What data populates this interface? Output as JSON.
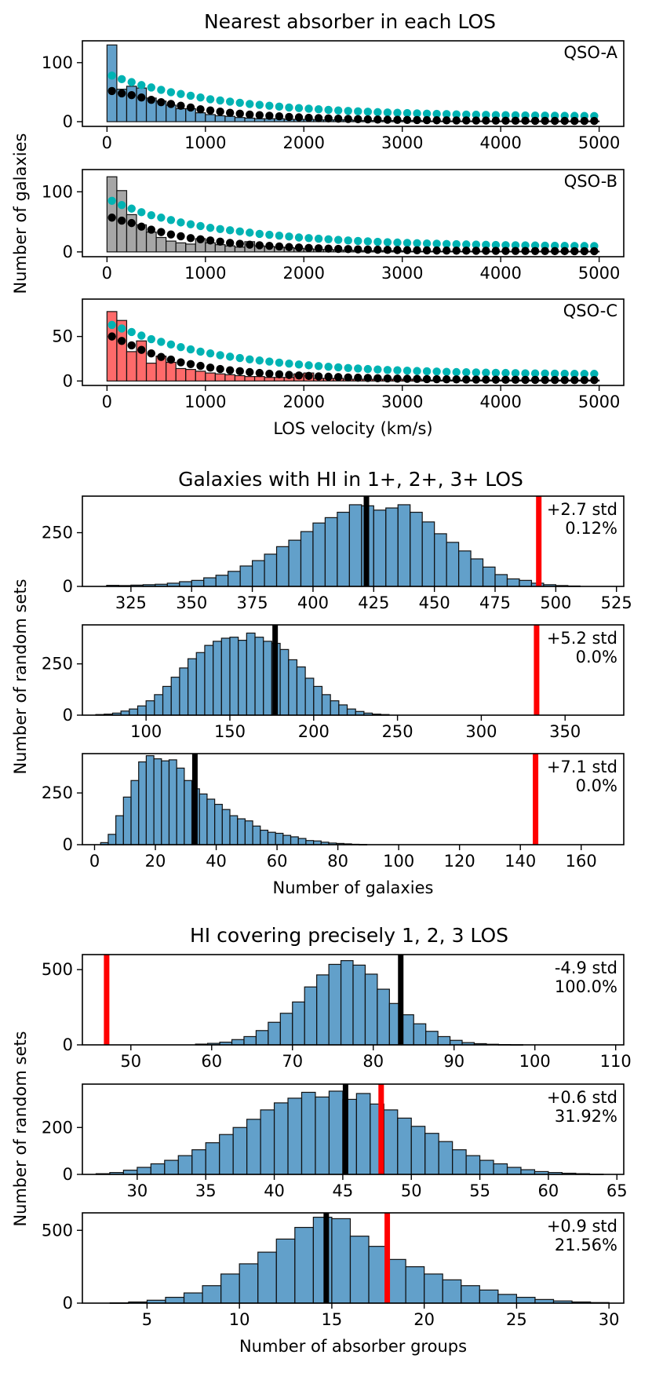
{
  "figure": {
    "titles": [
      "Nearest absorber in each LOS",
      "Galaxies with HI in 1+, 2+, 3+ LOS",
      "HI covering precisely 1, 2, 3 LOS"
    ],
    "ylabels": [
      "Number of galaxies",
      "Number of random sets",
      "Number of random sets"
    ]
  },
  "chart_data": [
    {
      "type": "bar",
      "group": 1,
      "label": "QSO-A",
      "fill": "#1f77b4",
      "alpha": 0.7,
      "xlim": [
        -250,
        5250
      ],
      "ylim": [
        -8,
        137
      ],
      "xticks": [
        0,
        1000,
        2000,
        3000,
        4000,
        5000
      ],
      "yticks": [
        0,
        100
      ],
      "bins": {
        "start": 0,
        "width": 100
      },
      "values": [
        130,
        55,
        60,
        57,
        40,
        35,
        28,
        22,
        22,
        15,
        12,
        10,
        9,
        7,
        6,
        5,
        5,
        5,
        4,
        4,
        4,
        3,
        3,
        3,
        3,
        2,
        2,
        2,
        2,
        2,
        2,
        2,
        1,
        1,
        1,
        1,
        1,
        1,
        1,
        1,
        1,
        1,
        1,
        1,
        1,
        1,
        1,
        1,
        1,
        1
      ],
      "xlabel": "",
      "scatter": [
        {
          "name": "cyan",
          "color": "#00b3b3",
          "x0": 50,
          "dx": 100,
          "values": [
            78,
            72,
            67,
            62,
            58,
            54,
            50,
            47,
            44,
            41,
            38,
            36,
            34,
            32,
            30,
            28.5,
            27,
            25.5,
            24,
            23,
            22,
            21,
            20,
            19,
            18.2,
            17.5,
            16.8,
            16.1,
            15.5,
            15,
            14.5,
            14,
            13.6,
            13.2,
            12.8,
            12.4,
            12.1,
            11.8,
            11.5,
            11.2,
            11,
            10.8,
            10.6,
            10.4,
            10.2,
            10,
            9.9,
            9.8,
            9.7,
            9.6
          ]
        },
        {
          "name": "black",
          "color": "#000000",
          "x0": 50,
          "dx": 100,
          "values": [
            52,
            48,
            45,
            41,
            37,
            33,
            30,
            27,
            24,
            21,
            19,
            17,
            15,
            13.5,
            12,
            11,
            10,
            9,
            8,
            7.3,
            6.6,
            6,
            5.5,
            5,
            4.6,
            4.2,
            3.9,
            3.6,
            3.3,
            3.1,
            2.9,
            2.7,
            2.5,
            2.3,
            2.2,
            2.1,
            2,
            1.9,
            1.8,
            1.7,
            1.6,
            1.5,
            1.5,
            1.4,
            1.4,
            1.3,
            1.3,
            1.2,
            1.2,
            1.2
          ]
        }
      ]
    },
    {
      "type": "bar",
      "group": 1,
      "label": "QSO-B",
      "fill": "#808080",
      "alpha": 0.7,
      "xlim": [
        -250,
        5250
      ],
      "ylim": [
        -8,
        137
      ],
      "xticks": [
        0,
        1000,
        2000,
        3000,
        4000,
        5000
      ],
      "yticks": [
        0,
        100
      ],
      "bins": {
        "start": 0,
        "width": 100
      },
      "values": [
        125,
        102,
        62,
        45,
        33,
        24,
        18,
        15,
        13,
        22,
        15,
        12,
        10,
        8,
        17,
        10,
        9,
        8,
        7,
        6,
        5,
        4,
        4,
        3,
        3,
        2,
        2,
        2,
        2,
        2,
        1,
        1,
        1,
        1,
        1,
        1,
        1,
        1,
        1,
        1,
        1,
        1,
        1,
        1,
        1,
        1,
        1,
        1,
        1,
        1
      ],
      "xlabel": "",
      "scatter": [
        {
          "name": "cyan",
          "color": "#00b3b3",
          "x0": 50,
          "dx": 100,
          "values": [
            85,
            78,
            72,
            66,
            61,
            57,
            53,
            49,
            46,
            43,
            40,
            38,
            36,
            34,
            32,
            30,
            28.5,
            27,
            25.5,
            24,
            23,
            22,
            21,
            20,
            19,
            18.2,
            17.5,
            16.8,
            16.1,
            15.5,
            15,
            14.5,
            14,
            13.6,
            13.2,
            12.8,
            12.4,
            12.1,
            11.8,
            11.5,
            11.2,
            11,
            10.8,
            10.6,
            10.4,
            10.2,
            10,
            9.9,
            9.8,
            9.7
          ]
        },
        {
          "name": "black",
          "color": "#000000",
          "x0": 50,
          "dx": 100,
          "values": [
            57,
            52,
            48,
            42,
            37,
            33,
            29,
            26,
            23,
            21,
            19,
            17,
            15,
            13.5,
            12,
            11,
            10,
            9,
            8,
            7.3,
            6.6,
            6,
            5.5,
            5,
            4.6,
            4.2,
            3.9,
            3.6,
            3.3,
            3.1,
            2.9,
            2.7,
            2.5,
            2.3,
            2.2,
            2.1,
            2,
            1.9,
            1.8,
            1.7,
            1.6,
            1.5,
            1.5,
            1.4,
            1.4,
            1.3,
            1.3,
            1.2,
            1.2,
            1.2
          ]
        }
      ]
    },
    {
      "type": "bar",
      "group": 1,
      "label": "QSO-C",
      "fill": "#ff2b2b",
      "alpha": 0.7,
      "xlim": [
        -250,
        5250
      ],
      "ylim": [
        -5,
        92
      ],
      "xticks": [
        0,
        1000,
        2000,
        3000,
        4000,
        5000
      ],
      "yticks": [
        0,
        50
      ],
      "bins": {
        "start": 0,
        "width": 100
      },
      "values": [
        78,
        68,
        33,
        45,
        20,
        28,
        21,
        14,
        13,
        11,
        9,
        8,
        7,
        6,
        5,
        5,
        4,
        4,
        4,
        8,
        9,
        3,
        3,
        3,
        2,
        2,
        2,
        2,
        2,
        2,
        2,
        2,
        1,
        1,
        1,
        1,
        1,
        1,
        1,
        1,
        1,
        1,
        1,
        1,
        1,
        1,
        1,
        1,
        1,
        1
      ],
      "xlabel": "LOS velocity (km/s)",
      "scatter": [
        {
          "name": "cyan",
          "color": "#00b3b3",
          "x0": 50,
          "dx": 100,
          "values": [
            63,
            59,
            55,
            51,
            47,
            44,
            41,
            38,
            35.5,
            33,
            31,
            29,
            27.3,
            25.8,
            24.3,
            23,
            21.8,
            20.6,
            19.5,
            18.5,
            17.6,
            16.8,
            16,
            15.3,
            14.6,
            14,
            13.4,
            12.9,
            12.4,
            12,
            11.6,
            11.2,
            10.9,
            10.6,
            10.3,
            10,
            9.8,
            9.6,
            9.4,
            9.2,
            9,
            8.8,
            8.6,
            8.5,
            8.4,
            8.3,
            8.2,
            8.1,
            8,
            8
          ]
        },
        {
          "name": "black",
          "color": "#000000",
          "x0": 50,
          "dx": 100,
          "values": [
            50,
            45,
            40,
            35,
            31,
            27,
            24,
            21,
            19,
            17,
            15,
            13.5,
            12,
            11,
            10,
            9,
            8.2,
            7.5,
            6.8,
            6.2,
            5.7,
            5.2,
            4.8,
            4.4,
            4,
            3.7,
            3.4,
            3.1,
            2.9,
            2.7,
            2.5,
            2.3,
            2.1,
            2,
            1.9,
            1.8,
            1.7,
            1.6,
            1.5,
            1.4,
            1.3,
            1.3,
            1.2,
            1.2,
            1.1,
            1.1,
            1,
            1,
            1,
            1
          ]
        }
      ]
    },
    {
      "type": "bar",
      "group": 2,
      "fill": "#1f77b4",
      "alpha": 0.7,
      "xlim": [
        305,
        528
      ],
      "ylim": [
        0,
        420
      ],
      "xticks": [
        325,
        350,
        375,
        400,
        425,
        450,
        475,
        500,
        525
      ],
      "yticks": [
        0,
        250
      ],
      "bins": {
        "start": 315,
        "width": 5
      },
      "values": [
        5,
        4,
        6,
        8,
        10,
        15,
        22,
        28,
        40,
        52,
        70,
        95,
        120,
        150,
        185,
        215,
        255,
        295,
        320,
        345,
        380,
        375,
        355,
        365,
        380,
        345,
        300,
        245,
        205,
        165,
        128,
        90,
        55,
        35,
        28,
        15,
        8,
        4,
        2
      ],
      "mean": 422,
      "observed": 493,
      "annotation": [
        "+2.7 std",
        "0.12%"
      ],
      "xlabel": ""
    },
    {
      "type": "bar",
      "group": 2,
      "fill": "#1f77b4",
      "alpha": 0.7,
      "xlim": [
        62,
        385
      ],
      "ylim": [
        0,
        440
      ],
      "xticks": [
        100,
        150,
        200,
        250,
        300,
        350
      ],
      "yticks": [
        0,
        250
      ],
      "bins": {
        "start": 70,
        "width": 5
      },
      "values": [
        3,
        5,
        10,
        20,
        30,
        45,
        70,
        100,
        140,
        185,
        230,
        275,
        305,
        340,
        360,
        375,
        380,
        365,
        400,
        380,
        360,
        350,
        320,
        270,
        235,
        180,
        140,
        100,
        70,
        50,
        30,
        18,
        10,
        5,
        3
      ],
      "mean": 177,
      "observed": 333,
      "annotation": [
        "+5.2 std",
        "0.0%"
      ],
      "xlabel": ""
    },
    {
      "type": "bar",
      "group": 2,
      "fill": "#1f77b4",
      "alpha": 0.7,
      "xlim": [
        -4,
        174
      ],
      "ylim": [
        0,
        440
      ],
      "xticks": [
        0,
        20,
        40,
        60,
        80,
        100,
        120,
        140,
        160
      ],
      "yticks": [
        0,
        250
      ],
      "bins": {
        "start": 2,
        "width": 2.5
      },
      "values": [
        10,
        50,
        140,
        230,
        310,
        400,
        430,
        415,
        405,
        410,
        370,
        310,
        270,
        245,
        220,
        195,
        170,
        140,
        125,
        115,
        90,
        70,
        60,
        55,
        45,
        38,
        30,
        20,
        18,
        12,
        8,
        6,
        4,
        2,
        1
      ],
      "mean": 33,
      "observed": 145,
      "annotation": [
        "+7.1 std",
        "0.0%"
      ],
      "xlabel": "Number of galaxies"
    },
    {
      "type": "bar",
      "group": 3,
      "fill": "#1f77b4",
      "alpha": 0.7,
      "xlim": [
        44,
        111
      ],
      "ylim": [
        0,
        600
      ],
      "xticks": [
        50,
        60,
        70,
        80,
        90,
        100,
        110
      ],
      "yticks": [
        0,
        500
      ],
      "bins": {
        "start": 58,
        "width": 1.5
      },
      "values": [
        5,
        10,
        18,
        35,
        55,
        95,
        150,
        210,
        285,
        385,
        465,
        535,
        560,
        530,
        470,
        370,
        275,
        200,
        140,
        90,
        55,
        30,
        15,
        8,
        4,
        2,
        1
      ],
      "mean": 83.4,
      "observed": 47,
      "annotation": [
        "-4.9 std",
        "100.0%"
      ],
      "xlabel": ""
    },
    {
      "type": "bar",
      "group": 3,
      "fill": "#1f77b4",
      "alpha": 0.7,
      "xlim": [
        26,
        65.5
      ],
      "ylim": [
        0,
        385
      ],
      "xticks": [
        30,
        35,
        40,
        45,
        50,
        55,
        60,
        65
      ],
      "yticks": [
        0,
        200
      ],
      "bins": {
        "start": 27,
        "width": 1
      },
      "values": [
        3,
        8,
        18,
        30,
        45,
        60,
        80,
        105,
        135,
        170,
        200,
        235,
        275,
        305,
        325,
        350,
        330,
        355,
        320,
        345,
        300,
        275,
        240,
        205,
        175,
        140,
        105,
        80,
        60,
        45,
        30,
        20,
        12,
        8,
        5,
        3,
        1
      ],
      "mean": 45.2,
      "observed": 47.8,
      "annotation": [
        "+0.6 std",
        "31.92%"
      ],
      "xlabel": ""
    },
    {
      "type": "bar",
      "group": 3,
      "fill": "#1f77b4",
      "alpha": 0.7,
      "xlim": [
        1.5,
        30.8
      ],
      "ylim": [
        0,
        620
      ],
      "xticks": [
        5,
        10,
        15,
        20,
        25,
        30
      ],
      "yticks": [
        0,
        500
      ],
      "bins": {
        "start": 3,
        "width": 1
      },
      "values": [
        2,
        8,
        20,
        40,
        70,
        120,
        200,
        270,
        350,
        440,
        520,
        590,
        580,
        460,
        390,
        300,
        250,
        200,
        160,
        120,
        90,
        60,
        40,
        25,
        15,
        8,
        4
      ],
      "mean": 14.7,
      "observed": 18,
      "annotation": [
        "+0.9 std",
        "21.56%"
      ],
      "xlabel": "Number of absorber groups"
    }
  ]
}
